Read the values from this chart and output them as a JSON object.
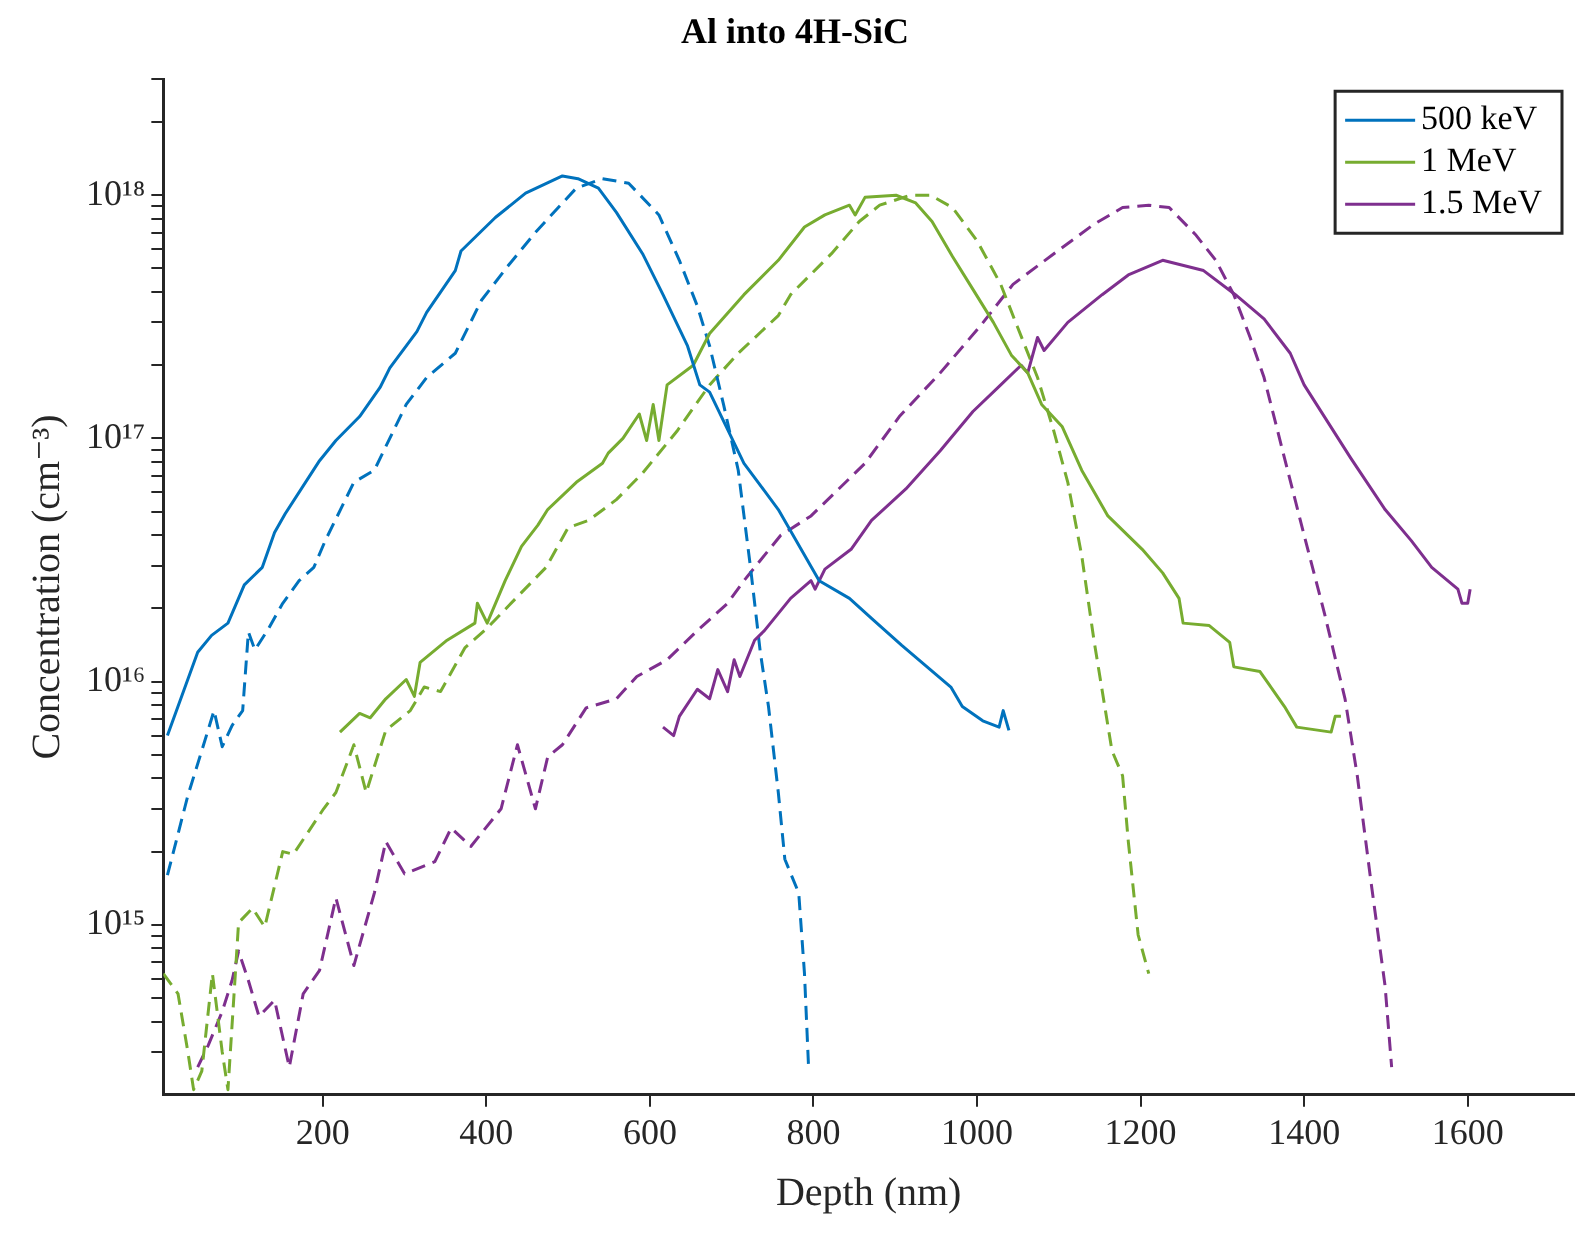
{
  "chart_data": {
    "type": "line",
    "title": "Al into 4H-SiC",
    "xlabel": "Depth (nm)",
    "ylabel": "Concentration (cm⁻³)",
    "log": "y",
    "grid": false,
    "legend": "top right",
    "marker": "none",
    "xlim": [
      5,
      1730
    ],
    "xticks": [
      200,
      400,
      600,
      800,
      1000,
      1200,
      1400,
      1600
    ],
    "ylim": [
      200000000000000.0,
      3e+18
    ],
    "yticks": [
      {
        "value": 300000000000000.0,
        "label": null
      },
      {
        "value": 400000000000000.0,
        "label": null
      },
      {
        "value": 500000000000000.0,
        "label": null
      },
      {
        "value": 600000000000000.0,
        "label": null
      },
      {
        "value": 700000000000000.0,
        "label": null
      },
      {
        "value": 800000000000000.0,
        "label": null
      },
      {
        "value": 900000000000000.0,
        "label": null
      },
      {
        "value": 1000000000000000.0,
        "label": "10¹⁵"
      },
      {
        "value": 2000000000000000.0,
        "label": null
      },
      {
        "value": 3000000000000000.0,
        "label": null
      },
      {
        "value": 4000000000000000.0,
        "label": null
      },
      {
        "value": 5000000000000000.0,
        "label": null
      },
      {
        "value": 6000000000000000.0,
        "label": null
      },
      {
        "value": 7000000000000000.0,
        "label": null
      },
      {
        "value": 8000000000000000.0,
        "label": null
      },
      {
        "value": 9000000000000000.0,
        "label": null
      },
      {
        "value": 1e+16,
        "label": "10¹⁶"
      },
      {
        "value": 2e+16,
        "label": null
      },
      {
        "value": 3e+16,
        "label": null
      },
      {
        "value": 4e+16,
        "label": null
      },
      {
        "value": 5e+16,
        "label": null
      },
      {
        "value": 6e+16,
        "label": null
      },
      {
        "value": 7e+16,
        "label": null
      },
      {
        "value": 8e+16,
        "label": null
      },
      {
        "value": 9e+16,
        "label": null
      },
      {
        "value": 1e+17,
        "label": "10¹⁷"
      },
      {
        "value": 2e+17,
        "label": null
      },
      {
        "value": 3e+17,
        "label": null
      },
      {
        "value": 4e+17,
        "label": null
      },
      {
        "value": 5e+17,
        "label": null
      },
      {
        "value": 6e+17,
        "label": null
      },
      {
        "value": 7e+17,
        "label": null
      },
      {
        "value": 8e+17,
        "label": null
      },
      {
        "value": 9e+17,
        "label": null
      },
      {
        "value": 1e+18,
        "label": "10¹⁸"
      },
      {
        "value": 2e+18,
        "label": null
      },
      {
        "value": 3e+18,
        "label": null
      }
    ],
    "series": [
      {
        "name": "500 keV",
        "color": "#0072bd",
        "line_style": "solid",
        "x": [
          10,
          47,
          64,
          84,
          104,
          126,
          141,
          154,
          196,
          216,
          245,
          270,
          282,
          315,
          327,
          362,
          369,
          411,
          448,
          493,
          512,
          537,
          559,
          591,
          616,
          646,
          661,
          673,
          715,
          757,
          807,
          844,
          871,
          908,
          968,
          982,
          1007,
          1027,
          1032,
          1039
        ],
        "values": [
          6000000000000000.0,
          1.32e+16,
          1.55e+16,
          1.74e+16,
          2.5e+16,
          2.95e+16,
          4.1e+16,
          4.9e+16,
          8.1e+16,
          9.8e+16,
          1.23e+17,
          1.62e+17,
          1.95e+17,
          2.75e+17,
          3.3e+17,
          4.9e+17,
          5.9e+17,
          8.1e+17,
          1.02e+18,
          1.2e+18,
          1.17e+18,
          1.07e+18,
          8.5e+17,
          5.75e+17,
          3.9e+17,
          2.4e+17,
          1.66e+17,
          1.55e+17,
          7.9e+16,
          5.1e+16,
          2.6e+16,
          2.2e+16,
          1.82e+16,
          1.41e+16,
          9500000000000000.0,
          7900000000000000.0,
          6900000000000000.0,
          6500000000000000.0,
          7600000000000000.0,
          6300000000000000.0
        ]
      },
      {
        "name": "1 MeV",
        "color": "#77ac30",
        "line_style": "solid",
        "x": [
          221,
          245,
          258,
          277,
          302,
          312,
          319,
          352,
          386,
          389,
          401,
          423,
          443,
          463,
          475,
          510,
          542,
          549,
          567,
          587,
          596,
          604,
          611,
          621,
          653,
          673,
          715,
          757,
          789,
          814,
          844,
          851,
          863,
          901,
          925,
          945,
          970,
          995,
          1020,
          1042,
          1062,
          1079,
          1104,
          1128,
          1160,
          1202,
          1227,
          1247,
          1252,
          1284,
          1309,
          1314,
          1346,
          1376,
          1391,
          1433,
          1438,
          1445
        ],
        "values": [
          6200000000000000.0,
          7400000000000000.0,
          7100000000000000.0,
          8500000000000000.0,
          1.02e+16,
          8700000000000000.0,
          1.2e+16,
          1.48e+16,
          1.74e+16,
          2.1e+16,
          1.74e+16,
          2.6e+16,
          3.6e+16,
          4.4e+16,
          5.1e+16,
          6.6e+16,
          7.9e+16,
          8.7e+16,
          1e+17,
          1.26e+17,
          9.8e+16,
          1.38e+17,
          9.8e+16,
          1.66e+17,
          2e+17,
          2.7e+17,
          3.9e+17,
          5.4e+17,
          7.4e+17,
          8.3e+17,
          9.1e+17,
          8.3e+17,
          9.8e+17,
          1e+18,
          9.3e+17,
          7.8e+17,
          5.6e+17,
          4.1e+17,
          3e+17,
          2.2e+17,
          1.86e+17,
          1.38e+17,
          1.12e+17,
          7.4e+16,
          4.8e+16,
          3.5e+16,
          2.8e+16,
          2.2e+16,
          1.74e+16,
          1.7e+16,
          1.45e+16,
          1.15e+16,
          1.1e+16,
          7900000000000000.0,
          6500000000000000.0,
          6200000000000000.0,
          7200000000000000.0,
          7200000000000000.0
        ]
      },
      {
        "name": "1.5 MeV",
        "color": "#7e2f8e",
        "line_style": "solid",
        "x": [
          616,
          629,
          636,
          658,
          673,
          683,
          695,
          703,
          710,
          728,
          740,
          772,
          797,
          802,
          814,
          846,
          871,
          913,
          955,
          995,
          1029,
          1054,
          1062,
          1074,
          1082,
          1111,
          1153,
          1185,
          1227,
          1277,
          1316,
          1351,
          1383,
          1400,
          1457,
          1499,
          1531,
          1556,
          1588,
          1593,
          1600,
          1603
        ],
        "values": [
          6500000000000000.0,
          6000000000000000.0,
          7200000000000000.0,
          9300000000000000.0,
          8500000000000000.0,
          1.12e+16,
          9100000000000000.0,
          1.23e+16,
          1.05e+16,
          1.48e+16,
          1.62e+16,
          2.2e+16,
          2.6e+16,
          2.4e+16,
          2.9e+16,
          3.5e+16,
          4.6e+16,
          6.2e+16,
          8.9e+16,
          1.29e+17,
          1.66e+17,
          2e+17,
          1.86e+17,
          2.6e+17,
          2.3e+17,
          3e+17,
          3.9e+17,
          4.7e+17,
          5.4e+17,
          4.9e+17,
          3.9e+17,
          3.1e+17,
          2.24e+17,
          1.66e+17,
          8.3e+16,
          5.1e+16,
          3.8e+16,
          2.95e+16,
          2.4e+16,
          2.1e+16,
          2.1e+16,
          2.4e+16
        ]
      },
      {
        "color": "#0072bd",
        "line_style": "dashed",
        "x": [
          10,
          35,
          52,
          67,
          77,
          89,
          102,
          109,
          117,
          134,
          151,
          171,
          189,
          203,
          238,
          263,
          302,
          327,
          362,
          394,
          426,
          461,
          510,
          542,
          574,
          611,
          636,
          658,
          673,
          690,
          708,
          723,
          735,
          745,
          757,
          765,
          782,
          789,
          794
        ],
        "values": [
          1600000000000000.0,
          3400000000000000.0,
          5200000000000000.0,
          7600000000000000.0,
          5400000000000000.0,
          6600000000000000.0,
          7600000000000000.0,
          1.6e+16,
          1.35e+16,
          1.66e+16,
          2.1e+16,
          2.6e+16,
          2.95e+16,
          3.8e+16,
          6.6e+16,
          7.4e+16,
          1.38e+17,
          1.78e+17,
          2.24e+17,
          3.7e+17,
          5.1e+17,
          7.1e+17,
          1.07e+18,
          1.17e+18,
          1.12e+18,
          8.3e+17,
          5.4e+17,
          3.5e+17,
          2.4e+17,
          1.38e+17,
          7.4e+16,
          2.95e+16,
          1.32e+16,
          7900000000000000.0,
          3500000000000000.0,
          1860000000000000.0,
          1350000000000000.0,
          630000000000000.0,
          260000000000000.0
        ]
      },
      {
        "color": "#77ac30",
        "line_style": "dashed",
        "x": [
          5,
          23,
          35,
          42,
          52,
          65,
          77,
          84,
          97,
          114,
          129,
          151,
          164,
          201,
          216,
          238,
          253,
          277,
          307,
          324,
          344,
          374,
          401,
          436,
          473,
          500,
          525,
          559,
          591,
          633,
          673,
          708,
          757,
          772,
          822,
          856,
          881,
          918,
          943,
          970,
          1000,
          1029,
          1049,
          1074,
          1094,
          1111,
          1128,
          1143,
          1165,
          1178,
          1185,
          1197,
          1210
        ],
        "values": [
          630000000000000.0,
          520000000000000.0,
          300000000000000.0,
          210000000000000.0,
          250000000000000.0,
          630000000000000.0,
          300000000000000.0,
          210000000000000.0,
          1020000000000000.0,
          1170000000000000.0,
          980000000000000.0,
          2000000000000000.0,
          1950000000000000.0,
          3000000000000000.0,
          3500000000000000.0,
          5500000000000000.0,
          3500000000000000.0,
          6300000000000000.0,
          7600000000000000.0,
          9500000000000000.0,
          9100000000000000.0,
          1.38e+16,
          1.66e+16,
          2.2e+16,
          2.95e+16,
          4.3e+16,
          4.6e+16,
          5.6e+16,
          7.2e+16,
          1.07e+17,
          1.66e+17,
          2.24e+17,
          3.2e+17,
          3.9e+17,
          5.75e+17,
          7.8e+17,
          9.1e+17,
          1e+18,
          1e+18,
          8.9e+17,
          6.5e+17,
          4.3e+17,
          2.9e+17,
          1.78e+17,
          1.07e+17,
          6.6e+16,
          3.3e+16,
          1.48e+16,
          5200000000000000.0,
          4100000000000000.0,
          2200000000000000.0,
          910000000000000.0,
          630000000000000.0
        ]
      },
      {
        "color": "#7e2f8e",
        "line_style": "dashed",
        "x": [
          47,
          60,
          77,
          89,
          97,
          109,
          122,
          141,
          159,
          176,
          196,
          216,
          238,
          263,
          277,
          300,
          337,
          357,
          381,
          418,
          438,
          460,
          475,
          493,
          522,
          559,
          584,
          621,
          658,
          695,
          715,
          760,
          797,
          863,
          905,
          955,
          1004,
          1044,
          1094,
          1143,
          1178,
          1210,
          1235,
          1267,
          1292,
          1314,
          1334,
          1351,
          1376,
          1400,
          1425,
          1450,
          1465,
          1482,
          1499,
          1507
        ],
        "values": [
          260000000000000.0,
          320000000000000.0,
          440000000000000.0,
          590000000000000.0,
          780000000000000.0,
          590000000000000.0,
          420000000000000.0,
          490000000000000.0,
          260000000000000.0,
          520000000000000.0,
          650000000000000.0,
          1290000000000000.0,
          680000000000000.0,
          1350000000000000.0,
          2200000000000000.0,
          1620000000000000.0,
          1820000000000000.0,
          2500000000000000.0,
          2100000000000000.0,
          3000000000000000.0,
          5500000000000000.0,
          3000000000000000.0,
          4900000000000000.0,
          5500000000000000.0,
          7800000000000000.0,
          8500000000000000.0,
          1.05e+16,
          1.23e+16,
          1.62e+16,
          2.1e+16,
          2.6e+16,
          4e+16,
          4.8e+16,
          7.9e+16,
          1.23e+17,
          1.86e+17,
          2.9e+17,
          4.3e+17,
          5.75e+17,
          7.6e+17,
          8.9e+17,
          9.1e+17,
          8.9e+17,
          6.9e+17,
          5.4e+17,
          3.9e+17,
          2.6e+17,
          1.78e+17,
          8.3e+16,
          4e+16,
          1.9e+16,
          8500000000000000.0,
          4100000000000000.0,
          1480000000000000.0,
          560000000000000.0,
          260000000000000.0
        ]
      }
    ]
  }
}
